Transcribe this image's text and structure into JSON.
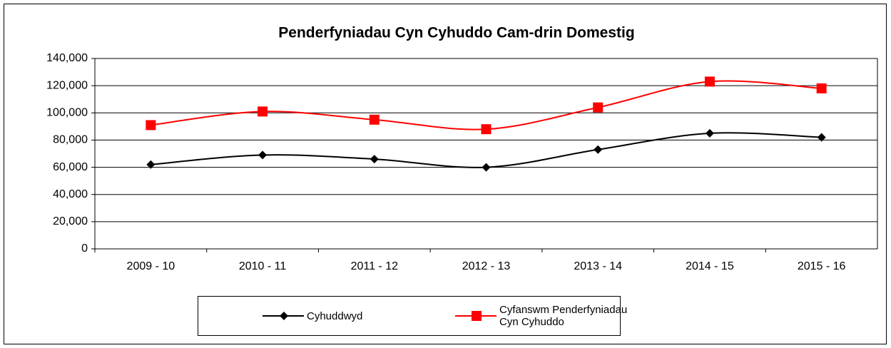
{
  "chart_data": {
    "type": "line",
    "title": "Penderfyniadau Cyn Cyhuddo Cam-drin Domestig",
    "categories": [
      "2009 - 10",
      "2010 - 11",
      "2011 - 12",
      "2012 - 13",
      "2013 - 14",
      "2014 - 15",
      "2015 - 16"
    ],
    "series": [
      {
        "name": "Cyhuddwyd",
        "color": "#000000",
        "marker": "diamond",
        "values": [
          62000,
          69000,
          66000,
          60000,
          73000,
          85000,
          82000
        ]
      },
      {
        "name": "Cyfanswm Penderfyniadau Cyn Cyhuddo",
        "color": "#ff0000",
        "marker": "square",
        "values": [
          91000,
          101000,
          95000,
          88000,
          104000,
          123000,
          118000
        ]
      }
    ],
    "ylim": [
      0,
      140000
    ],
    "yticks": [
      0,
      {
        "value": 20000,
        "label": "20,000"
      },
      {
        "value": 40000,
        "label": "40,000"
      },
      {
        "value": 60000,
        "label": "60,000"
      },
      {
        "value": 80000,
        "label": "80,000"
      },
      {
        "value": 100000,
        "label": "100,000"
      },
      {
        "value": 120000,
        "label": "120,000"
      },
      {
        "value": 140000,
        "label": "140,000"
      }
    ],
    "grid": true,
    "smooth": true,
    "legend": "bottom"
  }
}
